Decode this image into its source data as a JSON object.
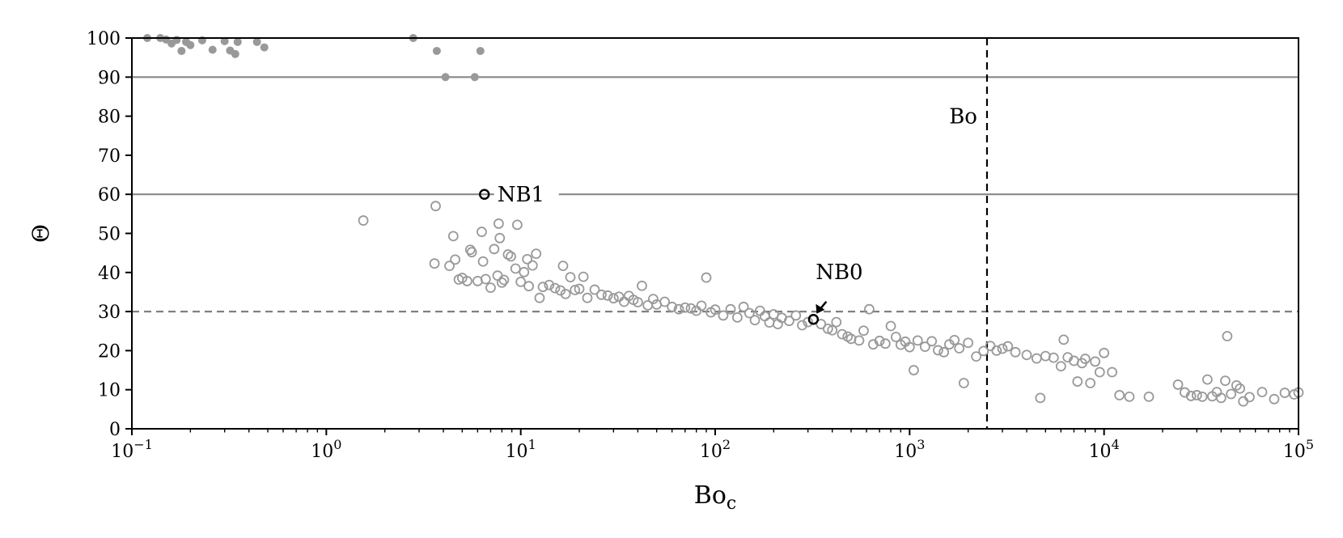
{
  "chart_data": {
    "type": "scatter",
    "title": "",
    "xlabel": "Bo",
    "xlabel_sub": "c",
    "ylabel": "Θ",
    "xscale": "log",
    "xlim": [
      0.1,
      100000
    ],
    "ylim": [
      0,
      100
    ],
    "x_ticks": [
      {
        "value": 0.1,
        "base": "10",
        "exp": "−1"
      },
      {
        "value": 1,
        "base": "10",
        "exp": "0"
      },
      {
        "value": 10,
        "base": "10",
        "exp": "1"
      },
      {
        "value": 100,
        "base": "10",
        "exp": "2"
      },
      {
        "value": 1000,
        "base": "10",
        "exp": "3"
      },
      {
        "value": 10000,
        "base": "10",
        "exp": "4"
      },
      {
        "value": 100000,
        "base": "10",
        "exp": "5"
      }
    ],
    "y_ticks": [
      "0",
      "10",
      "20",
      "30",
      "40",
      "50",
      "60",
      "70",
      "80",
      "90",
      "100"
    ],
    "grid": false,
    "reference_lines": [
      {
        "orientation": "horizontal",
        "y": 90,
        "style": "solid",
        "color": "#888888"
      },
      {
        "orientation": "horizontal",
        "y": 60,
        "style": "solid",
        "color": "#888888"
      },
      {
        "orientation": "horizontal",
        "y": 30,
        "style": "dashed",
        "color": "#808080"
      },
      {
        "orientation": "vertical",
        "x": 2500,
        "style": "dashed",
        "color": "#000000",
        "label": "Bo"
      }
    ],
    "annotations": [
      {
        "text": "NB1",
        "x": 6.5,
        "y": 60
      },
      {
        "text": "NB0",
        "x": 320,
        "y": 28
      }
    ],
    "colors": {
      "filled": "#999999",
      "hollow": "#999999",
      "highlight": "#000000",
      "axis": "#000000"
    },
    "series": [
      {
        "marker": "filled-circle",
        "points": [
          [
            0.12,
            100
          ],
          [
            0.14,
            100
          ],
          [
            0.15,
            99.6
          ],
          [
            0.16,
            98.6
          ],
          [
            0.17,
            99.5
          ],
          [
            0.18,
            96.7
          ],
          [
            0.19,
            99
          ],
          [
            0.2,
            98.2
          ],
          [
            0.23,
            99.4
          ],
          [
            0.26,
            97
          ],
          [
            0.3,
            99.2
          ],
          [
            0.32,
            96.8
          ],
          [
            0.34,
            95.9
          ],
          [
            0.35,
            99
          ],
          [
            0.44,
            99
          ],
          [
            0.48,
            97.6
          ],
          [
            2.8,
            100
          ],
          [
            3.7,
            96.7
          ],
          [
            4.1,
            90
          ],
          [
            5.8,
            90
          ],
          [
            6.2,
            96.7
          ]
        ]
      },
      {
        "marker": "hollow-circle",
        "points": [
          [
            1.55,
            53.3
          ],
          [
            3.6,
            42.3
          ],
          [
            3.65,
            57
          ],
          [
            4.3,
            41.7
          ],
          [
            4.5,
            49.3
          ],
          [
            4.6,
            43.3
          ],
          [
            4.8,
            38.2
          ],
          [
            5.0,
            38.6
          ],
          [
            5.3,
            37.8
          ],
          [
            5.5,
            45.8
          ],
          [
            5.6,
            45.2
          ],
          [
            6.0,
            37.8
          ],
          [
            6.3,
            50.4
          ],
          [
            6.4,
            42.8
          ],
          [
            6.6,
            38.3
          ],
          [
            7.0,
            36.1
          ],
          [
            7.3,
            46.0
          ],
          [
            7.6,
            39.2
          ],
          [
            7.7,
            52.5
          ],
          [
            7.8,
            48.8
          ],
          [
            8.0,
            37.4
          ],
          [
            8.2,
            38.1
          ],
          [
            8.6,
            44.6
          ],
          [
            8.9,
            44.1
          ],
          [
            9.4,
            41.0
          ],
          [
            9.6,
            52.2
          ],
          [
            10.0,
            37.6
          ],
          [
            10.4,
            40.1
          ],
          [
            10.8,
            43.4
          ],
          [
            11.0,
            36.5
          ],
          [
            11.5,
            41.8
          ],
          [
            12.0,
            44.8
          ],
          [
            12.5,
            33.5
          ],
          [
            13.0,
            36.3
          ],
          [
            14,
            36.8
          ],
          [
            15,
            36.0
          ],
          [
            16,
            35.4
          ],
          [
            16.5,
            41.7
          ],
          [
            17,
            34.5
          ],
          [
            18,
            38.8
          ],
          [
            19,
            35.5
          ],
          [
            20,
            35.8
          ],
          [
            21,
            38.9
          ],
          [
            22,
            33.5
          ],
          [
            24,
            35.6
          ],
          [
            26,
            34.3
          ],
          [
            28,
            34.1
          ],
          [
            30,
            33.4
          ],
          [
            32,
            33.8
          ],
          [
            34,
            32.5
          ],
          [
            36,
            34.0
          ],
          [
            38,
            33.0
          ],
          [
            40,
            32.4
          ],
          [
            42,
            36.6
          ],
          [
            45,
            31.6
          ],
          [
            48,
            33.2
          ],
          [
            50,
            31.8
          ],
          [
            55,
            32.5
          ],
          [
            60,
            31.2
          ],
          [
            65,
            30.6
          ],
          [
            70,
            31.0
          ],
          [
            75,
            30.8
          ],
          [
            80,
            30.2
          ],
          [
            85,
            31.5
          ],
          [
            90,
            38.7
          ],
          [
            95,
            29.8
          ],
          [
            100,
            30.5
          ],
          [
            110,
            29.0
          ],
          [
            120,
            30.6
          ],
          [
            130,
            28.5
          ],
          [
            140,
            31.2
          ],
          [
            150,
            29.6
          ],
          [
            160,
            27.8
          ],
          [
            170,
            30.2
          ],
          [
            180,
            28.8
          ],
          [
            190,
            27.2
          ],
          [
            200,
            29.3
          ],
          [
            210,
            26.8
          ],
          [
            220,
            28.4
          ],
          [
            240,
            27.6
          ],
          [
            260,
            29.0
          ],
          [
            280,
            26.5
          ],
          [
            300,
            27.3
          ],
          [
            350,
            26.8
          ],
          [
            380,
            25.6
          ],
          [
            400,
            25.2
          ],
          [
            420,
            27.3
          ],
          [
            450,
            24.2
          ],
          [
            480,
            23.6
          ],
          [
            500,
            23.0
          ],
          [
            550,
            22.6
          ],
          [
            580,
            25.1
          ],
          [
            620,
            30.6
          ],
          [
            650,
            21.6
          ],
          [
            700,
            22.5
          ],
          [
            750,
            21.8
          ],
          [
            800,
            26.3
          ],
          [
            850,
            23.5
          ],
          [
            900,
            21.5
          ],
          [
            950,
            22.3
          ],
          [
            1000,
            20.9
          ],
          [
            1050,
            15.0
          ],
          [
            1100,
            22.6
          ],
          [
            1200,
            21.0
          ],
          [
            1300,
            22.4
          ],
          [
            1400,
            20.1
          ],
          [
            1500,
            19.6
          ],
          [
            1600,
            21.6
          ],
          [
            1700,
            22.7
          ],
          [
            1800,
            20.6
          ],
          [
            1900,
            11.7
          ],
          [
            2000,
            22.0
          ],
          [
            2200,
            18.5
          ],
          [
            2400,
            19.9
          ],
          [
            2600,
            21.2
          ],
          [
            2800,
            20.0
          ],
          [
            3000,
            20.5
          ],
          [
            3200,
            21.1
          ],
          [
            3500,
            19.6
          ],
          [
            4000,
            18.9
          ],
          [
            4500,
            18.0
          ],
          [
            4700,
            7.9
          ],
          [
            5000,
            18.6
          ],
          [
            5500,
            18.2
          ],
          [
            6000,
            16.0
          ],
          [
            6200,
            22.8
          ],
          [
            6500,
            18.3
          ],
          [
            7000,
            17.4
          ],
          [
            7300,
            12.1
          ],
          [
            7700,
            16.8
          ],
          [
            8000,
            17.9
          ],
          [
            8500,
            11.7
          ],
          [
            9000,
            17.2
          ],
          [
            9500,
            14.5
          ],
          [
            10000,
            19.4
          ],
          [
            11000,
            14.5
          ],
          [
            12000,
            8.6
          ],
          [
            13500,
            8.2
          ],
          [
            17000,
            8.2
          ],
          [
            24000,
            11.3
          ],
          [
            26000,
            9.3
          ],
          [
            28000,
            8.4
          ],
          [
            30000,
            8.6
          ],
          [
            32000,
            8.2
          ],
          [
            34000,
            12.6
          ],
          [
            36000,
            8.3
          ],
          [
            38000,
            9.4
          ],
          [
            40000,
            7.9
          ],
          [
            42000,
            12.3
          ],
          [
            43000,
            23.7
          ],
          [
            45000,
            8.9
          ],
          [
            48000,
            11.1
          ],
          [
            50000,
            10.3
          ],
          [
            52000,
            7.0
          ],
          [
            56000,
            8.1
          ],
          [
            65000,
            9.4
          ],
          [
            75000,
            7.6
          ],
          [
            85000,
            9.2
          ],
          [
            95000,
            8.8
          ],
          [
            100000,
            9.3
          ]
        ]
      },
      {
        "marker": "hollow-circle-highlight",
        "points": [
          [
            6.5,
            60
          ],
          [
            320,
            28
          ]
        ]
      }
    ]
  }
}
